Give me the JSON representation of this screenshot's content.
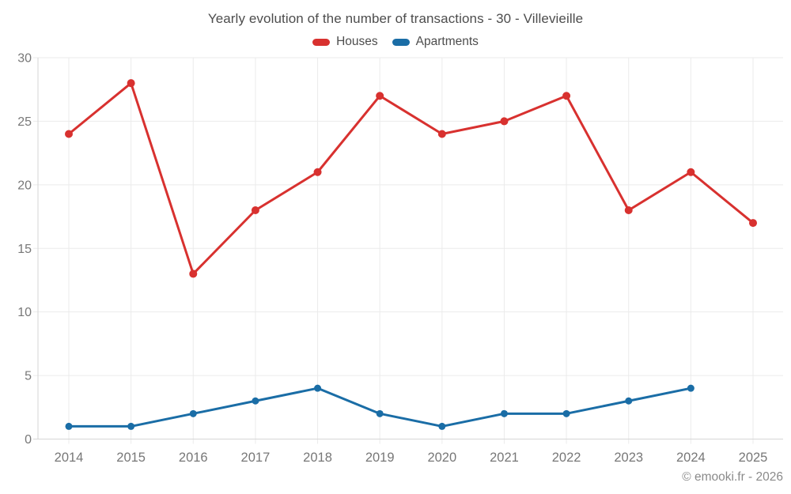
{
  "header": {
    "title": "Yearly evolution of the number of transactions - 30 - Villevieille"
  },
  "footer": {
    "text": "© emooki.fr - 2026"
  },
  "colors": {
    "houses": "#d8312f",
    "apartments": "#1a6da6",
    "grid": "#ebebeb",
    "axis": "#d6d6d6",
    "tick_text": "#777777",
    "title_text": "#4d4d4d",
    "footer_text": "#8a8a8a",
    "background": "#ffffff"
  },
  "chart_data": {
    "type": "line",
    "title": "Yearly evolution of the number of transactions - 30 - Villevieille",
    "categories": [
      "2014",
      "2015",
      "2016",
      "2017",
      "2018",
      "2019",
      "2020",
      "2021",
      "2022",
      "2023",
      "2024",
      "2025"
    ],
    "series": [
      {
        "name": "Houses",
        "color": "#d8312f",
        "marker_radius": 5,
        "values": [
          24,
          28,
          13,
          18,
          21,
          27,
          24,
          25,
          27,
          18,
          21,
          17
        ]
      },
      {
        "name": "Apartments",
        "color": "#1a6da6",
        "marker_radius": 4.5,
        "values": [
          1,
          1,
          2,
          3,
          4,
          2,
          1,
          2,
          2,
          3,
          4,
          null
        ]
      }
    ],
    "xlabel": "",
    "ylabel": "",
    "ylim": [
      0,
      30
    ],
    "y_ticks": [
      0,
      5,
      10,
      15,
      20,
      25,
      30
    ],
    "grid": true,
    "legend_position": "top"
  }
}
